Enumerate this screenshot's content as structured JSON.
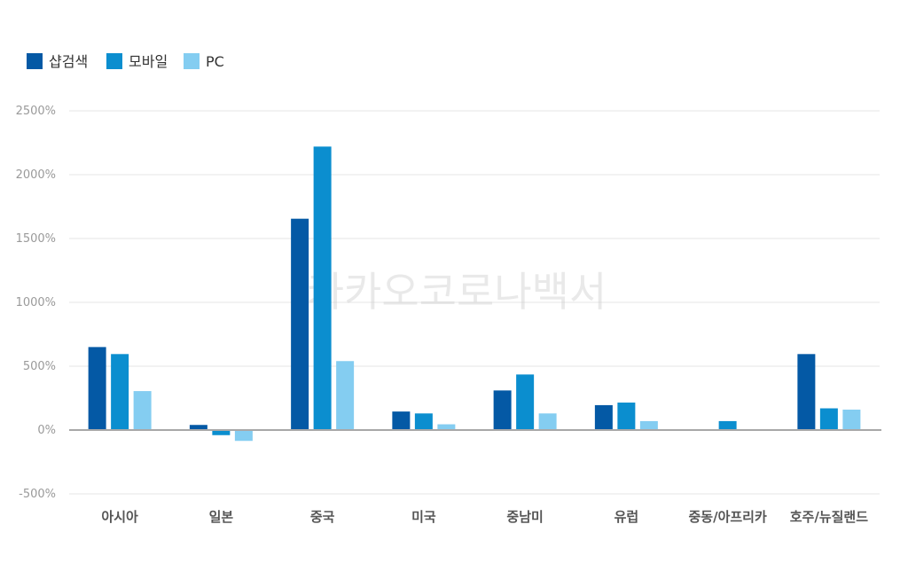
{
  "watermark": "카카오코로나백서",
  "colors": {
    "shop_search": "#0459a5",
    "mobile": "#0b8ecf",
    "pc": "#84cdf1",
    "grid": "#e5e5e5",
    "baseline": "#a8a8a8"
  },
  "chart_data": {
    "type": "bar",
    "title": "",
    "xlabel": "",
    "ylabel": "",
    "ylim": [
      -500,
      2500
    ],
    "yticks": [
      2500,
      2000,
      1500,
      1000,
      500,
      0,
      -500
    ],
    "ytick_labels": [
      "2500%",
      "2000%",
      "1500%",
      "1000%",
      "500%",
      "0%",
      "-500%"
    ],
    "grid": true,
    "legend_position": "top-left",
    "categories": [
      "아시아",
      "일본",
      "중국",
      "미국",
      "중남미",
      "유럽",
      "중동/아프리카",
      "호주/뉴질랜드"
    ],
    "series": [
      {
        "name": "샵검색",
        "color": "#0459a5",
        "values": [
          650,
          40,
          1655,
          145,
          310,
          195,
          0,
          595
        ]
      },
      {
        "name": "모바일",
        "color": "#0b8ecf",
        "values": [
          595,
          -40,
          2220,
          130,
          435,
          215,
          70,
          170
        ]
      },
      {
        "name": "PC",
        "color": "#84cdf1",
        "values": [
          305,
          -85,
          540,
          45,
          130,
          70,
          0,
          160
        ]
      }
    ]
  }
}
